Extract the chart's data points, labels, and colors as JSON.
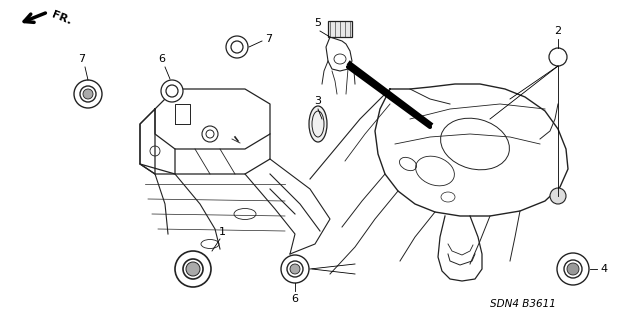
{
  "bg_color": "#ffffff",
  "diagram_code": "SDN4 B3611",
  "lc": "#222222",
  "figsize": [
    6.4,
    3.19
  ],
  "dpi": 100
}
